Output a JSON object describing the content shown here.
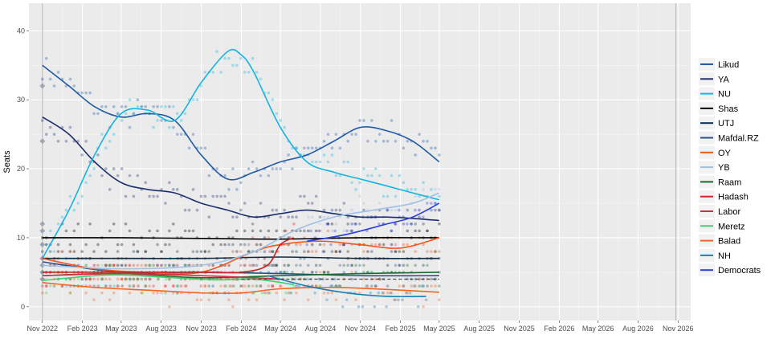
{
  "chart_data": {
    "type": "line",
    "title": "",
    "xlabel": "",
    "ylabel": "Seats",
    "xlim": [
      "2022-10-01",
      "2026-11-30"
    ],
    "ylim": [
      -2,
      44
    ],
    "y_ticks": [
      0,
      10,
      20,
      30,
      40
    ],
    "x_ticks": [
      "2022-11-01",
      "2023-02-01",
      "2023-05-01",
      "2023-08-01",
      "2023-11-01",
      "2024-02-01",
      "2024-05-01",
      "2024-08-01",
      "2024-11-01",
      "2025-02-01",
      "2025-05-01",
      "2025-08-01",
      "2025-11-01",
      "2026-02-01",
      "2026-05-01",
      "2026-08-01",
      "2026-11-01"
    ],
    "x_tick_labels": [
      "Nov 2022",
      "Feb 2023",
      "May 2023",
      "Aug 2023",
      "Nov 2023",
      "Feb 2024",
      "May 2024",
      "Aug 2024",
      "Nov 2024",
      "Feb 2025",
      "May 2025",
      "Aug 2025",
      "Nov 2025",
      "Feb 2026",
      "May 2026",
      "Aug 2026",
      "Nov 2026"
    ],
    "vlines": [
      "2022-11-01",
      "2026-10-27"
    ],
    "threshold": 4,
    "grid": true,
    "legend_position": "right",
    "series": [
      {
        "name": "Likud",
        "color": "#1f5aa6",
        "x": [
          "2022-11-01",
          "2023-01-01",
          "2023-03-01",
          "2023-05-01",
          "2023-07-01",
          "2023-09-01",
          "2023-11-01",
          "2024-01-01",
          "2024-03-01",
          "2024-05-01",
          "2024-07-01",
          "2024-09-01",
          "2024-11-01",
          "2025-01-01",
          "2025-03-01",
          "2025-05-01"
        ],
        "values": [
          35,
          32,
          29,
          27.5,
          28,
          27,
          22,
          18.5,
          19.5,
          21,
          22,
          24,
          26,
          25.5,
          24,
          21
        ]
      },
      {
        "name": "YA",
        "color": "#1c2f6b",
        "x": [
          "2022-11-01",
          "2023-01-01",
          "2023-03-01",
          "2023-05-01",
          "2023-07-01",
          "2023-09-01",
          "2023-11-01",
          "2024-01-01",
          "2024-03-01",
          "2024-05-01",
          "2024-07-01",
          "2024-09-01",
          "2024-11-01",
          "2025-01-01",
          "2025-03-01",
          "2025-05-01"
        ],
        "values": [
          27.5,
          25,
          21,
          18,
          17,
          16.5,
          15,
          14,
          13,
          13.5,
          14,
          13.5,
          13,
          13,
          12.8,
          12.5
        ]
      },
      {
        "name": "NU",
        "color": "#13b5e0",
        "x": [
          "2022-11-01",
          "2023-01-01",
          "2023-03-01",
          "2023-05-01",
          "2023-07-01",
          "2023-09-01",
          "2023-11-01",
          "2024-01-01",
          "2024-02-01",
          "2024-03-01",
          "2024-05-01",
          "2024-07-01",
          "2024-09-01",
          "2024-11-01",
          "2025-01-01",
          "2025-03-01",
          "2025-05-01"
        ],
        "values": [
          7,
          14,
          22,
          28,
          28.5,
          27,
          32.5,
          37,
          36.5,
          34,
          26,
          21,
          19.5,
          18.5,
          17.5,
          16.5,
          15.5
        ]
      },
      {
        "name": "Shas",
        "color": "#000000",
        "x": [
          "2022-11-01",
          "2023-05-01",
          "2023-11-01",
          "2024-05-01",
          "2024-11-01",
          "2025-05-01"
        ],
        "values": [
          10,
          10,
          9.9,
          9.8,
          10,
          10
        ]
      },
      {
        "name": "UTJ",
        "color": "#0b2d4a",
        "x": [
          "2022-11-01",
          "2023-05-01",
          "2023-11-01",
          "2024-05-01",
          "2024-11-01",
          "2025-05-01"
        ],
        "values": [
          7,
          7,
          7,
          7.2,
          7,
          7
        ]
      },
      {
        "name": "Mafdal.RZ",
        "color": "#2c4f8a",
        "x": [
          "2022-11-01",
          "2023-05-01",
          "2023-11-01",
          "2024-05-01",
          "2024-11-01",
          "2025-05-01"
        ],
        "values": [
          6.5,
          5,
          5,
          4.8,
          4.5,
          4.5
        ]
      },
      {
        "name": "OY",
        "color": "#f2541b",
        "x": [
          "2022-11-01",
          "2023-03-01",
          "2023-07-01",
          "2023-11-01",
          "2024-03-01",
          "2024-05-01",
          "2024-08-01",
          "2024-11-01",
          "2025-02-01",
          "2025-05-01"
        ],
        "values": [
          7,
          5.5,
          5,
          5,
          8,
          9,
          9.5,
          9,
          8.5,
          10
        ]
      },
      {
        "name": "YB",
        "color": "#9fc1e6",
        "x": [
          "2022-11-01",
          "2023-05-01",
          "2023-11-01",
          "2024-03-01",
          "2024-06-01",
          "2024-09-01",
          "2024-12-01",
          "2025-03-01",
          "2025-05-01"
        ],
        "values": [
          6,
          5.5,
          6,
          8,
          11,
          13,
          14,
          15,
          16.5
        ]
      },
      {
        "name": "Raam",
        "color": "#1e6b2e",
        "x": [
          "2022-11-01",
          "2023-05-01",
          "2023-11-01",
          "2024-05-01",
          "2024-11-01",
          "2025-05-01"
        ],
        "values": [
          4.5,
          4.8,
          4.2,
          4.5,
          4.8,
          5
        ]
      },
      {
        "name": "Hadash",
        "color": "#c62828",
        "x": [
          "2022-11-01",
          "2023-05-01",
          "2023-11-01",
          "2024-02-01",
          "2024-04-01",
          "2024-05-01",
          "2024-06-01"
        ],
        "values": [
          5,
          5,
          5,
          5,
          6,
          9,
          10
        ]
      },
      {
        "name": "Labor",
        "color": "#d32f3f",
        "x": [
          "2022-11-01",
          "2023-05-01",
          "2023-11-01",
          "2024-03-01",
          "2024-05-01"
        ],
        "values": [
          4.5,
          4.8,
          4.5,
          4.2,
          4
        ]
      },
      {
        "name": "Meretz",
        "color": "#3bd16b",
        "x": [
          "2022-11-01",
          "2023-04-01",
          "2023-08-01",
          "2023-12-01",
          "2024-03-01",
          "2024-06-01"
        ],
        "values": [
          3.8,
          4.6,
          4.3,
          3.9,
          4,
          3.2
        ]
      },
      {
        "name": "Balad",
        "color": "#f26522",
        "x": [
          "2022-11-01",
          "2023-03-01",
          "2023-07-01",
          "2023-11-01",
          "2024-02-01",
          "2024-05-01",
          "2024-09-01",
          "2025-01-01",
          "2025-05-01"
        ],
        "values": [
          3.5,
          2.8,
          2.4,
          2,
          2,
          2.6,
          2.8,
          2.5,
          2.1
        ]
      },
      {
        "name": "NH",
        "color": "#1a7fb5",
        "x": [
          "2024-04-01",
          "2024-07-01",
          "2024-10-01",
          "2025-01-01",
          "2025-04-01"
        ],
        "values": [
          4.5,
          3,
          2,
          1.5,
          1.5
        ]
      },
      {
        "name": "Democrats",
        "color": "#2b3fd6",
        "x": [
          "2024-07-01",
          "2024-10-01",
          "2025-01-01",
          "2025-03-01",
          "2025-05-01"
        ],
        "values": [
          9.5,
          10.5,
          12,
          13,
          15
        ]
      }
    ],
    "initial_markers": [
      {
        "x": "2022-11-01",
        "values": [
          32,
          24,
          12,
          11,
          9,
          7,
          6,
          5,
          4
        ]
      }
    ]
  }
}
